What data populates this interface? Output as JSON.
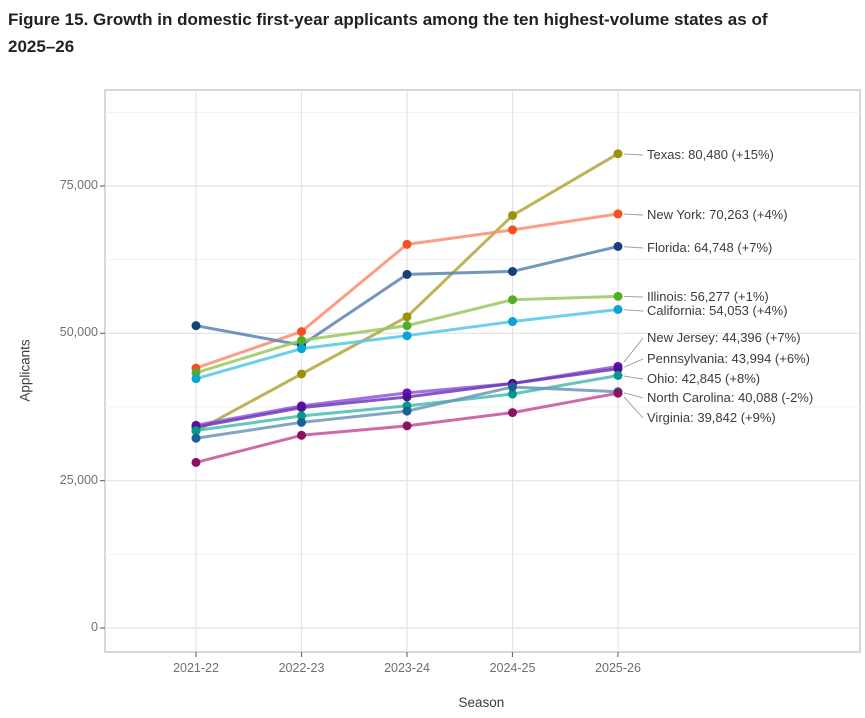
{
  "title": "Figure 15. Growth in domestic first-year applicants among the ten highest-volume states as of 2025–26",
  "chart_data": {
    "type": "line",
    "x_categories": [
      "2021-22",
      "2022-23",
      "2023-24",
      "2024-25",
      "2025-26"
    ],
    "xlabel": "Season",
    "ylabel": "Applicants",
    "ylim": [
      0,
      91000
    ],
    "y_ticks": [
      0,
      25000,
      50000,
      75000
    ],
    "y_tick_labels": [
      "0",
      "25,000",
      "50,000",
      "75,000"
    ],
    "y_minor_ticks": [
      12500,
      37500,
      62500,
      87500
    ],
    "grid": "major and minor horizontal, major vertical, light grey on white",
    "legend_position": "right-side direct callout labels",
    "series": [
      {
        "name": "Texas",
        "values": [
          33400,
          43100,
          52800,
          70000,
          80480
        ],
        "final_value": "80,480",
        "pct_change": "+15%",
        "callout": "Texas: 80,480 (+15%)",
        "line_color": "#b3a63a",
        "point_color": "#9a9208"
      },
      {
        "name": "New York",
        "values": [
          44100,
          50300,
          65100,
          67560,
          70263
        ],
        "final_value": "70,263",
        "pct_change": "+4%",
        "callout": "New York: 70,263 (+4%)",
        "line_color": "#fc8d6e",
        "point_color": "#f4511e"
      },
      {
        "name": "Florida",
        "values": [
          51300,
          48000,
          60000,
          60500,
          64748
        ],
        "final_value": "64,748",
        "pct_change": "+7%",
        "callout": "Florida: 64,748 (+7%)",
        "line_color": "#5b84b1",
        "point_color": "#16407c"
      },
      {
        "name": "Illinois",
        "values": [
          43300,
          48800,
          51300,
          55700,
          56277
        ],
        "final_value": "56,277",
        "pct_change": "+1%",
        "callout": "Illinois: 56,277 (+1%)",
        "line_color": "#99c95e",
        "point_color": "#53ae27"
      },
      {
        "name": "California",
        "values": [
          42300,
          47400,
          49600,
          52000,
          54053
        ],
        "final_value": "54,053",
        "pct_change": "+4%",
        "callout": "California: 54,053 (+4%)",
        "line_color": "#55c7e8",
        "point_color": "#09a3d5"
      },
      {
        "name": "New Jersey",
        "values": [
          34400,
          37700,
          39900,
          41500,
          44396
        ],
        "final_value": "44,396",
        "pct_change": "+7%",
        "callout": "New Jersey: 44,396 (+7%)",
        "line_color": "#9256dd",
        "point_color": "#6b0fc4"
      },
      {
        "name": "Pennsylvania",
        "values": [
          34100,
          37400,
          39200,
          41500,
          43994
        ],
        "final_value": "43,994",
        "pct_change": "+6%",
        "callout": "Pennsylvania: 43,994 (+6%)",
        "line_color": "#6d3bb8",
        "point_color": "#50128f"
      },
      {
        "name": "Ohio",
        "values": [
          33500,
          36000,
          37700,
          39700,
          42845
        ],
        "final_value": "42,845",
        "pct_change": "+8%",
        "callout": "Ohio: 42,845 (+8%)",
        "line_color": "#46bdb2",
        "point_color": "#009b8d"
      },
      {
        "name": "North Carolina",
        "values": [
          32200,
          34900,
          36800,
          40900,
          40088
        ],
        "final_value": "40,088",
        "pct_change": "-2%",
        "callout": "North Carolina: 40,088 (-2%)",
        "line_color": "#6b96ba",
        "point_color": "#1c5f93"
      },
      {
        "name": "Virginia",
        "values": [
          28100,
          32700,
          34300,
          36550,
          39842
        ],
        "final_value": "39,842",
        "pct_change": "+9%",
        "callout": "Virginia: 39,842 (+9%)",
        "line_color": "#c45098",
        "point_color": "#8e1062"
      }
    ]
  },
  "colors": {
    "panel_border": "#c4c4c4",
    "grid_major": "#e3e3e3",
    "grid_minor": "#f1f1f1",
    "tick_mark": "#707070",
    "leader_line": "#9a9a9a",
    "title_text": "#202124",
    "axis_text": "#6f6f6f"
  }
}
